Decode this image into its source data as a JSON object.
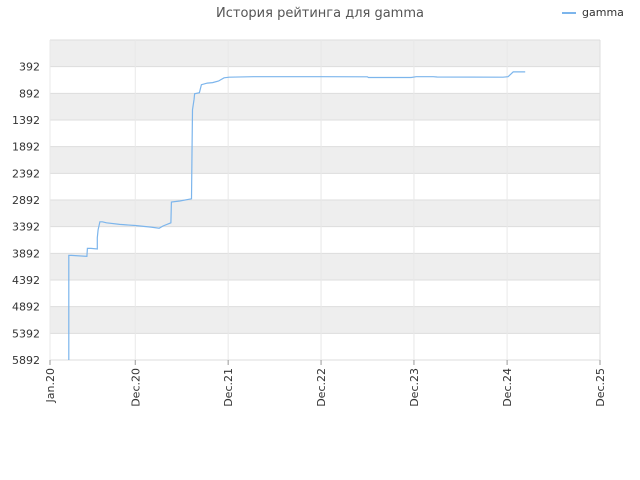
{
  "chart_data": {
    "type": "line",
    "title": "История рейтинга для gamma",
    "xlabel": "",
    "ylabel": "",
    "y_inverted": true,
    "ylim": [
      5892,
      -108
    ],
    "y_ticks": [
      392,
      892,
      1392,
      1892,
      2392,
      2892,
      3392,
      3892,
      4392,
      4892,
      5392,
      5892
    ],
    "x_ticks": [
      {
        "label": "Jan.20",
        "date": "2020-01-01"
      },
      {
        "label": "Dec.20",
        "date": "2020-12-01"
      },
      {
        "label": "Dec.21",
        "date": "2021-12-01"
      },
      {
        "label": "Dec.22",
        "date": "2022-12-01"
      },
      {
        "label": "Dec.23",
        "date": "2023-12-01"
      },
      {
        "label": "Dec.24",
        "date": "2024-12-01"
      },
      {
        "label": "Dec.25",
        "date": "2025-12-01"
      }
    ],
    "grid": true,
    "legend_position": "top-right",
    "series": [
      {
        "name": "gamma",
        "color": "#7cb5ec",
        "points": [
          [
            "2020-03-15",
            5892
          ],
          [
            "2020-03-15",
            3930
          ],
          [
            "2020-03-25",
            3930
          ],
          [
            "2020-05-25",
            3950
          ],
          [
            "2020-05-27",
            3800
          ],
          [
            "2020-06-10",
            3800
          ],
          [
            "2020-07-05",
            3810
          ],
          [
            "2020-07-05",
            3600
          ],
          [
            "2020-07-08",
            3450
          ],
          [
            "2020-07-15",
            3300
          ],
          [
            "2020-07-25",
            3300
          ],
          [
            "2020-08-10",
            3320
          ],
          [
            "2020-10-01",
            3350
          ],
          [
            "2020-12-01",
            3370
          ],
          [
            "2021-02-01",
            3400
          ],
          [
            "2021-03-05",
            3420
          ],
          [
            "2021-03-20",
            3380
          ],
          [
            "2021-04-20",
            3320
          ],
          [
            "2021-04-22",
            2930
          ],
          [
            "2021-05-25",
            2910
          ],
          [
            "2021-07-10",
            2870
          ],
          [
            "2021-07-12",
            2000
          ],
          [
            "2021-07-14",
            1200
          ],
          [
            "2021-07-20",
            1000
          ],
          [
            "2021-07-22",
            900
          ],
          [
            "2021-08-10",
            880
          ],
          [
            "2021-08-18",
            730
          ],
          [
            "2021-09-10",
            700
          ],
          [
            "2021-10-01",
            690
          ],
          [
            "2021-10-25",
            660
          ],
          [
            "2021-11-01",
            640
          ],
          [
            "2021-11-15",
            600
          ],
          [
            "2021-12-05",
            590
          ],
          [
            "2022-03-10",
            580
          ],
          [
            "2022-06-20",
            580
          ],
          [
            "2022-12-01",
            580
          ],
          [
            "2023-06-01",
            582
          ],
          [
            "2023-06-05",
            595
          ],
          [
            "2023-11-20",
            595
          ],
          [
            "2023-12-10",
            580
          ],
          [
            "2024-02-15",
            580
          ],
          [
            "2024-03-01",
            585
          ],
          [
            "2024-11-15",
            590
          ],
          [
            "2024-12-05",
            580
          ],
          [
            "2024-12-25",
            490
          ],
          [
            "2025-02-10",
            490
          ]
        ]
      }
    ]
  }
}
